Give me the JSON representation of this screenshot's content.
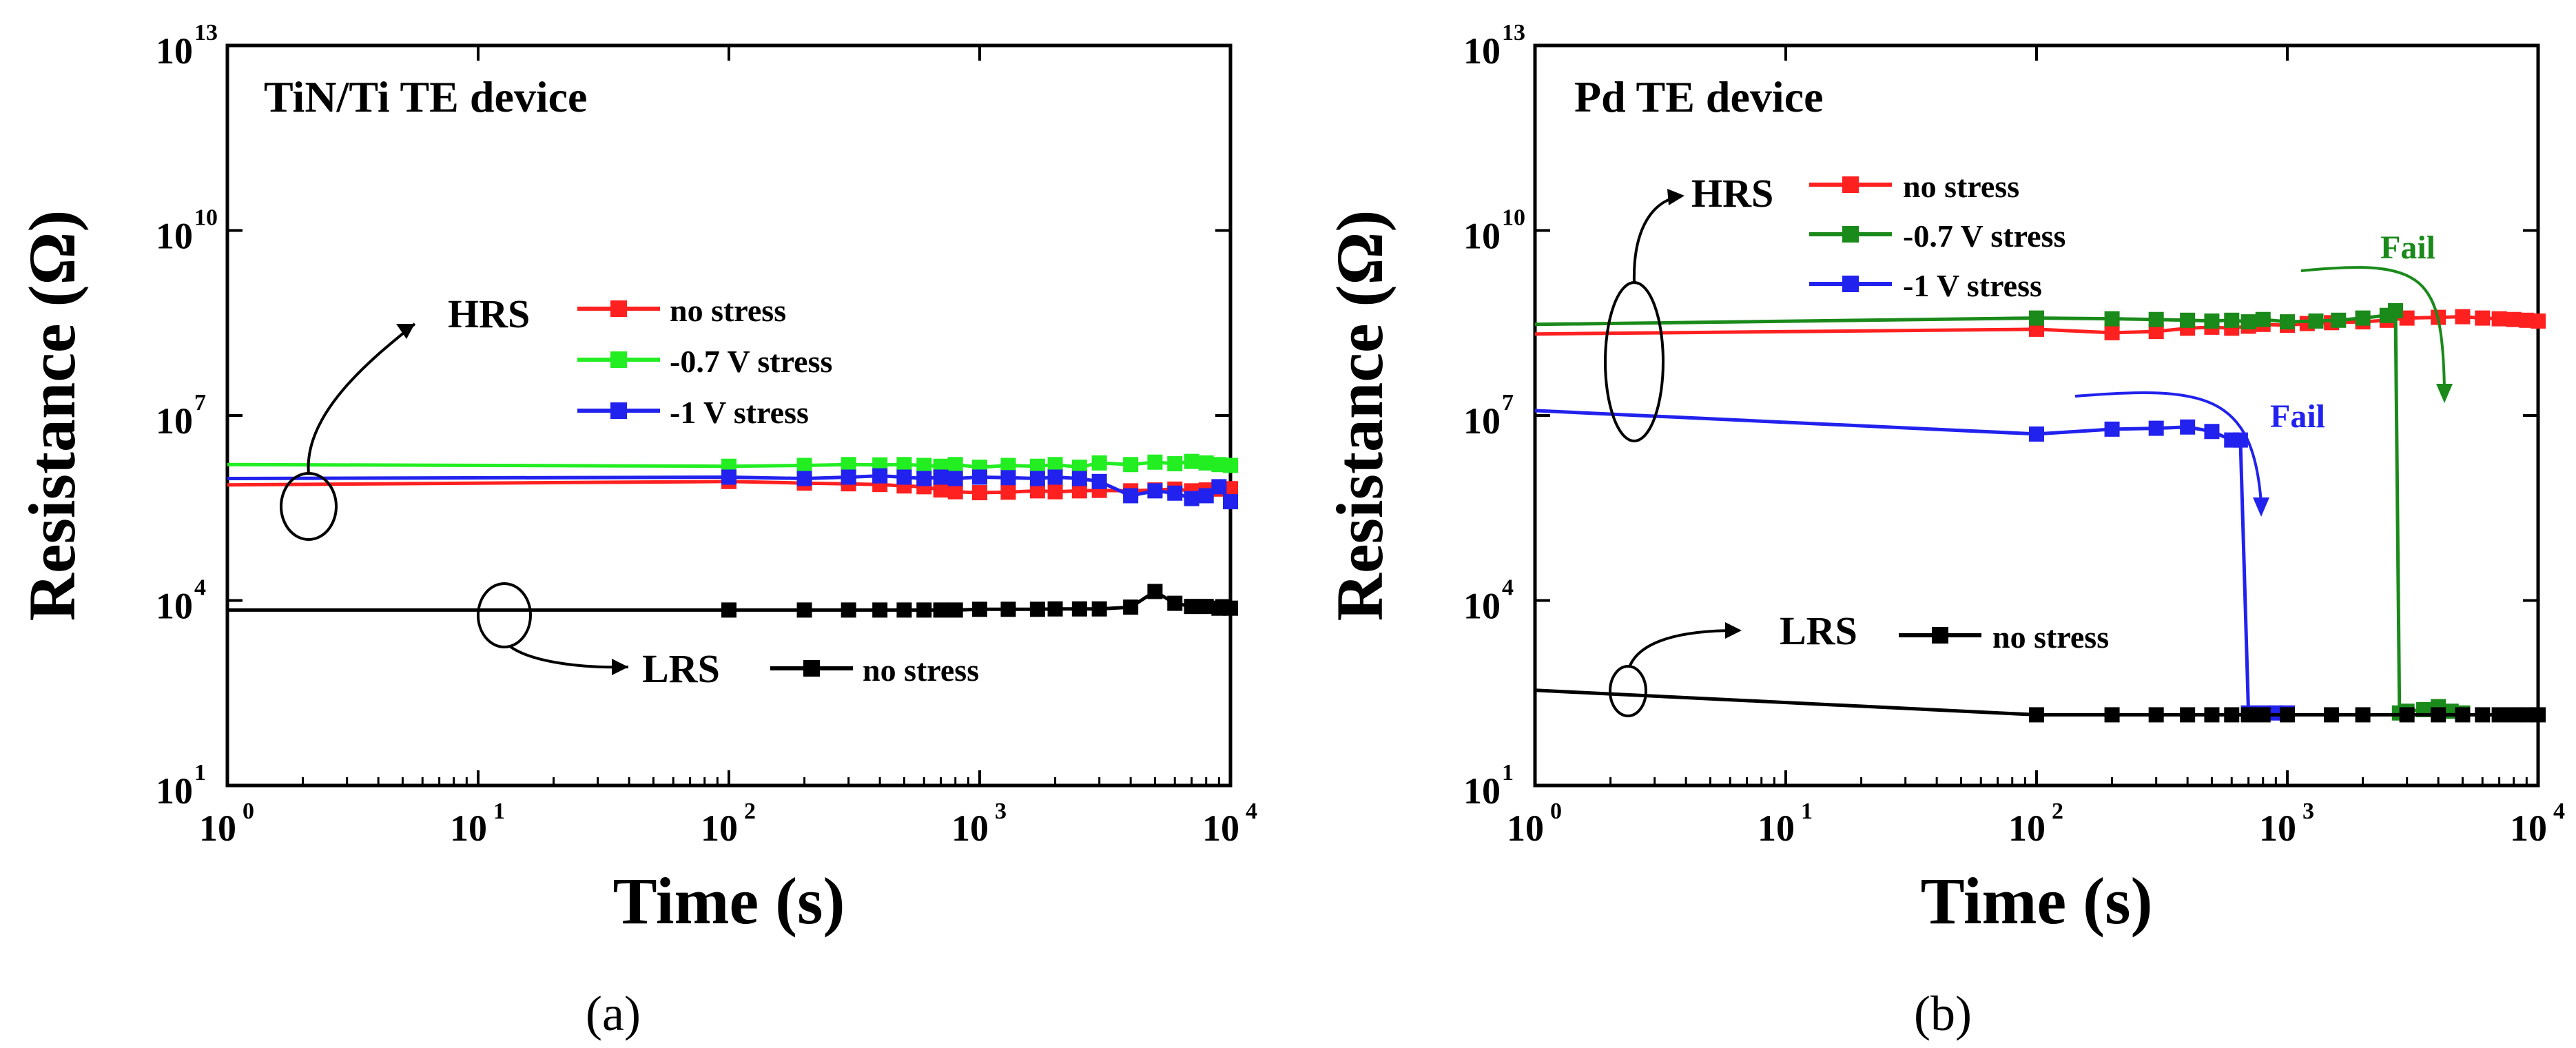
{
  "chart_data": [
    {
      "type": "line",
      "panel_label": "(a)",
      "title": "TiN/Ti TE device",
      "xlabel": "Time (s)",
      "ylabel": "Resistance (Ω)",
      "xscale": "log",
      "yscale": "log",
      "xlim": [
        1,
        10000
      ],
      "ylim": [
        10,
        10000000000000
      ],
      "x_ticks": [
        {
          "base": "10",
          "exp": "0"
        },
        {
          "base": "10",
          "exp": "1"
        },
        {
          "base": "10",
          "exp": "2"
        },
        {
          "base": "10",
          "exp": "3"
        },
        {
          "base": "10",
          "exp": "4"
        }
      ],
      "y_ticks": [
        {
          "base": "10",
          "exp": "1"
        },
        {
          "base": "10",
          "exp": "4"
        },
        {
          "base": "10",
          "exp": "7"
        },
        {
          "base": "10",
          "exp": "10"
        },
        {
          "base": "10",
          "exp": "13"
        }
      ],
      "annotations": {
        "hrs": "HRS",
        "lrs": "LRS"
      },
      "series": [
        {
          "name": "no stress",
          "group": "HRS",
          "color": "#ff2020",
          "x": [
            1,
            100,
            200,
            300,
            400,
            500,
            600,
            700,
            800,
            1000,
            1300,
            1700,
            2000,
            2500,
            3000,
            4000,
            5000,
            6000,
            7000,
            8000,
            9000,
            10000
          ],
          "y": [
            750000,
            850000,
            800000,
            780000,
            760000,
            720000,
            700000,
            620000,
            580000,
            560000,
            570000,
            600000,
            580000,
            600000,
            610000,
            600000,
            620000,
            640000,
            600000,
            620000,
            640000,
            650000
          ]
        },
        {
          "name": "-0.7 V stress",
          "group": "HRS",
          "color": "#22ee22",
          "x": [
            1,
            100,
            200,
            300,
            400,
            500,
            600,
            700,
            800,
            1000,
            1300,
            1700,
            2000,
            2500,
            3000,
            4000,
            5000,
            6000,
            7000,
            8000,
            9000,
            10000
          ],
          "y": [
            1600000,
            1500000,
            1550000,
            1600000,
            1580000,
            1600000,
            1550000,
            1500000,
            1600000,
            1450000,
            1550000,
            1500000,
            1600000,
            1450000,
            1700000,
            1600000,
            1750000,
            1650000,
            1800000,
            1700000,
            1600000,
            1550000
          ]
        },
        {
          "name": "-1 V stress",
          "group": "HRS",
          "color": "#2222ee",
          "x": [
            1,
            100,
            200,
            300,
            400,
            500,
            600,
            700,
            800,
            1000,
            1300,
            1700,
            2000,
            2500,
            3000,
            4000,
            5000,
            6000,
            7000,
            8000,
            9000,
            10000
          ],
          "y": [
            950000,
            1000000,
            950000,
            1000000,
            1050000,
            1000000,
            950000,
            1000000,
            950000,
            1000000,
            980000,
            950000,
            1000000,
            950000,
            850000,
            500000,
            600000,
            550000,
            450000,
            500000,
            700000,
            400000
          ]
        },
        {
          "name": "no stress",
          "group": "LRS",
          "color": "#000000",
          "x": [
            1,
            100,
            200,
            300,
            400,
            500,
            600,
            700,
            800,
            1000,
            1300,
            1700,
            2000,
            2500,
            3000,
            4000,
            5000,
            6000,
            7000,
            8000,
            9000,
            10000
          ],
          "y": [
            7000,
            7000,
            7000,
            7000,
            7000,
            7000,
            7000,
            7000,
            7000,
            7200,
            7200,
            7200,
            7300,
            7300,
            7300,
            7800,
            14000,
            9000,
            8000,
            8000,
            7500,
            7500
          ]
        }
      ]
    },
    {
      "type": "line",
      "panel_label": "(b)",
      "title": "Pd TE device",
      "xlabel": "Time (s)",
      "ylabel": "Resistance (Ω)",
      "xscale": "log",
      "yscale": "log",
      "xlim": [
        1,
        10000
      ],
      "ylim": [
        10,
        10000000000000
      ],
      "x_ticks": [
        {
          "base": "10",
          "exp": "0"
        },
        {
          "base": "10",
          "exp": "1"
        },
        {
          "base": "10",
          "exp": "2"
        },
        {
          "base": "10",
          "exp": "3"
        },
        {
          "base": "10",
          "exp": "4"
        }
      ],
      "y_ticks": [
        {
          "base": "10",
          "exp": "1"
        },
        {
          "base": "10",
          "exp": "4"
        },
        {
          "base": "10",
          "exp": "7"
        },
        {
          "base": "10",
          "exp": "10"
        },
        {
          "base": "10",
          "exp": "13"
        }
      ],
      "annotations": {
        "hrs": "HRS",
        "lrs": "LRS",
        "fail_blue": "Fail",
        "fail_green": "Fail"
      },
      "series": [
        {
          "name": "no stress",
          "group": "HRS",
          "color": "#ff2020",
          "x": [
            1,
            100,
            200,
            300,
            400,
            500,
            600,
            700,
            800,
            1000,
            1200,
            1500,
            2000,
            2500,
            3000,
            4000,
            5000,
            6000,
            7000,
            8000,
            9000,
            10000
          ],
          "y": [
            210000000,
            250000000,
            220000000,
            230000000,
            260000000,
            270000000,
            260000000,
            280000000,
            300000000,
            290000000,
            310000000,
            320000000,
            330000000,
            350000000,
            380000000,
            390000000,
            400000000,
            380000000,
            370000000,
            360000000,
            350000000,
            340000000
          ]
        },
        {
          "name": "-0.7 V stress",
          "group": "HRS",
          "color": "#1a8a1a",
          "x": [
            1,
            100,
            200,
            300,
            400,
            500,
            600,
            700,
            800,
            1000,
            1300,
            1600,
            2000,
            2500,
            2700,
            2800,
            3000,
            3500,
            4000,
            4500,
            5000
          ],
          "y": [
            300000000,
            380000000,
            370000000,
            360000000,
            350000000,
            340000000,
            350000000,
            330000000,
            360000000,
            330000000,
            340000000,
            350000000,
            380000000,
            420000000,
            500000000,
            150,
            160,
            170,
            190,
            160,
            150
          ]
        },
        {
          "name": "-1 V stress",
          "group": "HRS",
          "color": "#2222ee",
          "x": [
            1,
            100,
            200,
            300,
            400,
            500,
            600,
            650,
            700,
            800,
            900,
            1000
          ],
          "y": [
            12000000,
            5000000,
            6000000,
            6200000,
            6500000,
            5500000,
            4000000,
            4000000,
            150,
            150,
            150,
            150
          ]
        },
        {
          "name": "no stress",
          "group": "LRS",
          "color": "#000000",
          "x": [
            1,
            100,
            200,
            300,
            400,
            500,
            600,
            700,
            800,
            1000,
            1500,
            2000,
            3000,
            4000,
            5000,
            6000,
            7000,
            8000,
            9000,
            10000
          ],
          "y": [
            350,
            140,
            140,
            140,
            140,
            140,
            140,
            140,
            140,
            140,
            140,
            140,
            140,
            140,
            140,
            140,
            140,
            140,
            140,
            140
          ]
        }
      ]
    }
  ]
}
